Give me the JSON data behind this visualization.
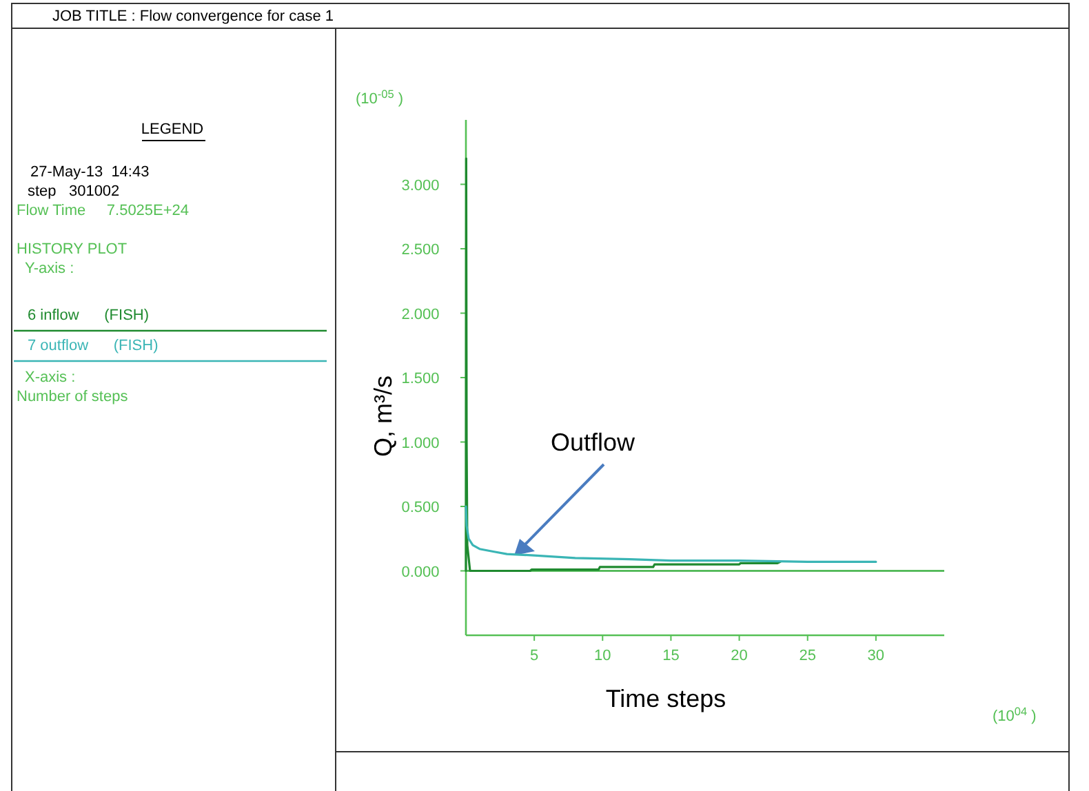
{
  "chart_data": {
    "type": "line",
    "title": "JOB TITLE : Flow convergence for case 1",
    "xlabel": "Time steps",
    "ylabel": "Q, m³/s",
    "annotations": [
      "LEGEND",
      "27-May-13  14:43",
      "step   301002",
      "Flow Time     7.5025E+24",
      "HISTORY PLOT",
      "Y-axis :",
      "X-axis :",
      "Number of steps",
      "(10$^{-05}$ )",
      "(10$^{04}$ )",
      "Outflow"
    ],
    "xlim": [
      0,
      35
    ],
    "ylim": [
      -0.5,
      3.5
    ],
    "xticks": [
      5,
      10,
      15,
      20,
      25,
      30
    ],
    "yticks": [
      {
        "value": 0,
        "label": "0.000"
      },
      {
        "value": 0.5,
        "label": "0.500"
      },
      {
        "value": 1,
        "label": "1.000"
      },
      {
        "value": 1.5,
        "label": "1.500"
      },
      {
        "value": 2,
        "label": "2.000"
      },
      {
        "value": 2.5,
        "label": "2.500"
      },
      {
        "value": 3,
        "label": "3.000"
      }
    ],
    "ref_lines": [
      {
        "axis": "y",
        "value": 0,
        "color": "#3cb043"
      }
    ],
    "legend": "left",
    "series": [
      {
        "name": "6 inflow      (FISH)",
        "color": "#1f8a2f",
        "x": [
          0,
          0.02,
          0.05,
          0.1,
          0.3,
          4.7,
          4.8,
          9.7,
          9.8,
          13.7,
          13.8,
          20,
          20.1,
          22.8,
          23
        ],
        "values": [
          0,
          3.2,
          1.0,
          0.2,
          0,
          0,
          0.01,
          0.01,
          0.03,
          0.03,
          0.05,
          0.05,
          0.06,
          0.06,
          0.07
        ]
      },
      {
        "name": "7 outflow      (FISH)",
        "color": "#3ab5b5",
        "x": [
          0,
          0.05,
          0.2,
          0.5,
          1,
          2,
          3,
          5,
          8,
          12,
          15,
          20,
          25,
          30
        ],
        "values": [
          0.5,
          0.35,
          0.25,
          0.2,
          0.17,
          0.15,
          0.13,
          0.12,
          0.1,
          0.09,
          0.08,
          0.08,
          0.07,
          0.07
        ]
      }
    ]
  }
}
